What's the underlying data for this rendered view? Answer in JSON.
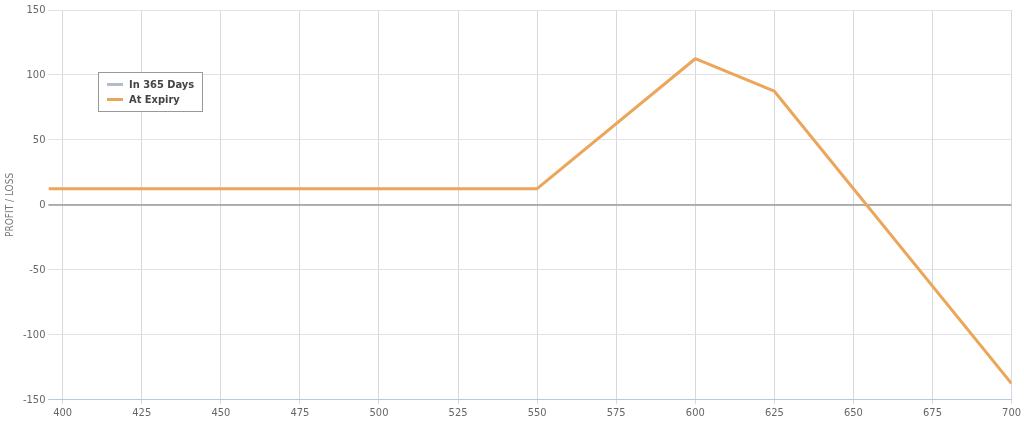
{
  "chart_data": {
    "type": "line",
    "ylabel": "PROFIT / LOSS",
    "x": [
      395.5,
      550,
      600,
      625,
      700
    ],
    "series": [
      {
        "name": "In 365 Days",
        "color": "#b4bccb",
        "values": [
          null,
          null,
          null,
          null,
          null
        ]
      },
      {
        "name": "At Expiry",
        "color": "#eba65a",
        "values": [
          12.5,
          12.5,
          112.5,
          87.5,
          -137.5
        ]
      }
    ],
    "xlim": [
      395.5,
      700
    ],
    "xticks": [
      400,
      425,
      450,
      475,
      500,
      525,
      550,
      575,
      600,
      625,
      650,
      675,
      700
    ],
    "ylim": [
      -150,
      150
    ],
    "yticks": [
      -150,
      -100,
      -50,
      0,
      50,
      100,
      150
    ],
    "ref_lines": [
      {
        "axis": "y",
        "value": 0,
        "color": "#999999"
      }
    ],
    "grid": true,
    "legend": "top left",
    "marker": "none",
    "line_style": "solid"
  }
}
